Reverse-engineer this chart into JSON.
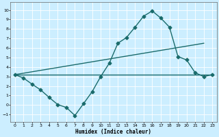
{
  "title": "",
  "xlabel": "Humidex (Indice chaleur)",
  "bg_color": "#cceeff",
  "grid_color": "#ffffff",
  "line_color": "#1a6b6b",
  "xlim": [
    -0.5,
    23.5
  ],
  "ylim": [
    -1.8,
    10.8
  ],
  "xticks": [
    0,
    1,
    2,
    3,
    4,
    5,
    6,
    7,
    8,
    9,
    10,
    11,
    12,
    13,
    14,
    15,
    16,
    17,
    18,
    19,
    20,
    21,
    22,
    23
  ],
  "yticks": [
    -1,
    0,
    1,
    2,
    3,
    4,
    5,
    6,
    7,
    8,
    9,
    10
  ],
  "line1_x": [
    0,
    1,
    2,
    3,
    4,
    5,
    6,
    7,
    8,
    9,
    10,
    11,
    12,
    13,
    14,
    15,
    16,
    17,
    18,
    19,
    20,
    21,
    22,
    23
  ],
  "line1_y": [
    3.2,
    2.85,
    2.2,
    1.6,
    0.8,
    0.05,
    -0.25,
    -1.1,
    0.15,
    1.4,
    3.0,
    4.4,
    6.5,
    7.1,
    8.2,
    9.35,
    9.9,
    9.15,
    8.2,
    5.1,
    4.75,
    3.4,
    3.0,
    3.2
  ],
  "line2_x": [
    0,
    22
  ],
  "line2_y": [
    3.2,
    6.5
  ],
  "line3_x": [
    0,
    23
  ],
  "line3_y": [
    3.2,
    3.2
  ],
  "marker": "D",
  "marker_size": 2.5,
  "line_width": 1.0,
  "tick_fontsize": 4.5,
  "xlabel_fontsize": 5.5
}
